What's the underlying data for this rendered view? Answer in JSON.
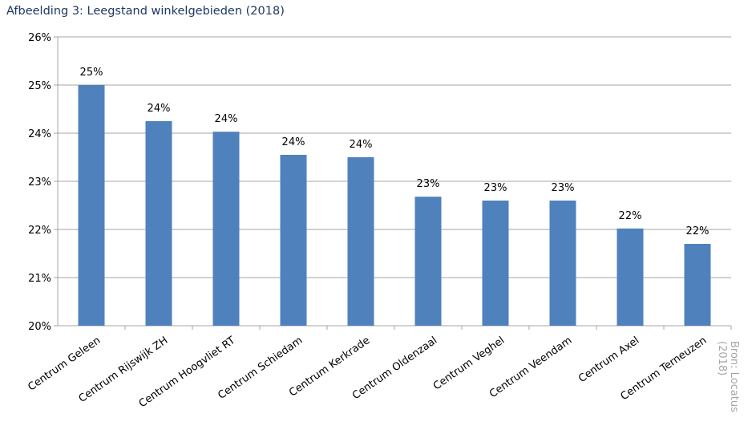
{
  "title": "Afbeelding 3: Leegstand winkelgebieden (2018)",
  "source": "Bron: Locatus (2018)",
  "source_lines": [
    "Bron: Locatus",
    "(2018)"
  ],
  "colors": {
    "bar": "#4f81bd",
    "grid": "#a6a6a6",
    "title": "#1f3864",
    "source": "#a6a6a6"
  },
  "chart_data": {
    "type": "bar",
    "title": "Afbeelding 3: Leegstand winkelgebieden (2018)",
    "xlabel": "",
    "ylabel": "",
    "ylim": [
      20,
      26
    ],
    "yticks": [
      20,
      21,
      22,
      23,
      24,
      25,
      26
    ],
    "ytick_labels": [
      "20%",
      "21%",
      "22%",
      "23%",
      "24%",
      "25%",
      "26%"
    ],
    "grid": true,
    "categories": [
      "Centrum Geleen",
      "Centrum Rijswijk ZH",
      "Centrum Hoogvliet RT",
      "Centrum Schiedam",
      "Centrum Kerkrade",
      "Centrum Oldenzaal",
      "Centrum Veghel",
      "Centrum Veendam",
      "Centrum Axel",
      "Centrum Terneuzen"
    ],
    "values": [
      25.0,
      24.25,
      24.03,
      23.55,
      23.5,
      22.68,
      22.6,
      22.6,
      22.02,
      21.7
    ],
    "data_labels": [
      "25%",
      "24%",
      "24%",
      "24%",
      "24%",
      "23%",
      "23%",
      "23%",
      "22%",
      "22%"
    ]
  }
}
